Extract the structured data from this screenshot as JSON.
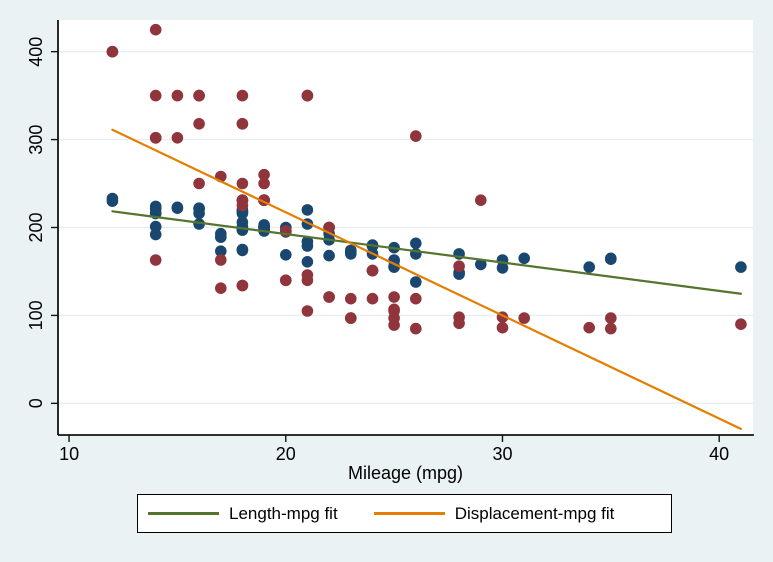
{
  "figure": {
    "background_color": "#EAF2F3",
    "plot_background_color": "#FFFFFF",
    "grid_color": "#E7EFF2",
    "axis_color": "#121212",
    "text_color": "#000000"
  },
  "x_axis": {
    "title": "Mileage (mpg)"
  },
  "legend": {
    "items": [
      {
        "label": "Length-mpg fit",
        "color": "#55752F"
      },
      {
        "label": "Displacement-mpg fit",
        "color": "#E37E00"
      }
    ]
  },
  "chart_data": {
    "type": "scatter",
    "title": "",
    "xlabel": "Mileage (mpg)",
    "ylabel": "",
    "x_ticks": [
      10,
      20,
      30,
      40
    ],
    "y_ticks": [
      0,
      100,
      200,
      300,
      400
    ],
    "xlim": [
      9.49,
      41.56
    ],
    "ylim": [
      -36,
      436
    ],
    "grid": "horizontal-only",
    "legend_position": "bottom",
    "marker_radius": 5.8,
    "series": [
      {
        "name": "Length",
        "color": "#1A476F",
        "marker": "circle",
        "x": [
          22,
          17,
          22,
          20,
          15,
          18,
          26,
          20,
          16,
          19,
          14,
          14,
          21,
          29,
          16,
          22,
          22,
          24,
          19,
          30,
          18,
          16,
          18,
          28,
          21,
          12,
          12,
          14,
          20,
          14,
          15,
          18,
          14,
          20,
          21,
          19,
          19,
          18,
          19,
          24,
          16,
          28,
          34,
          25,
          26,
          18,
          18,
          18,
          19,
          19,
          19,
          24,
          17,
          23,
          25,
          23,
          35,
          24,
          21,
          21,
          25,
          28,
          30,
          14,
          26,
          35,
          18,
          31,
          18,
          23,
          41,
          25,
          25,
          17
        ],
        "y": [
          186,
          173,
          168,
          196,
          222,
          218,
          170,
          200,
          204,
          200,
          221,
          224,
          204,
          158,
          222,
          193,
          200,
          179,
          197,
          163,
          206,
          216,
          220,
          147,
          179,
          233,
          230,
          201,
          169,
          216,
          223,
          197,
          216,
          195,
          220,
          200,
          196,
          218,
          200,
          180,
          221,
          170,
          155,
          162,
          182,
          201,
          216,
          198,
          201,
          198,
          203,
          179,
          189,
          174,
          177,
          170,
          165,
          170,
          184,
          161,
          163,
          149,
          154,
          192,
          138,
          164,
          174,
          165,
          175,
          172,
          155,
          155,
          156,
          193
        ]
      },
      {
        "name": "Displacement",
        "color": "#90353B",
        "marker": "circle",
        "x": [
          22,
          17,
          22,
          20,
          15,
          18,
          26,
          20,
          16,
          19,
          14,
          14,
          21,
          29,
          16,
          22,
          22,
          24,
          19,
          30,
          18,
          16,
          18,
          28,
          21,
          12,
          12,
          14,
          20,
          14,
          15,
          18,
          14,
          20,
          21,
          19,
          19,
          18,
          19,
          24,
          16,
          28,
          34,
          25,
          26,
          18,
          18,
          18,
          19,
          19,
          19,
          24,
          17,
          23,
          25,
          23,
          35,
          24,
          21,
          21,
          25,
          28,
          30,
          14,
          26,
          35,
          18,
          31,
          18,
          23,
          41,
          25,
          25,
          17
        ],
        "y": [
          121,
          258,
          121,
          196,
          350,
          231,
          304,
          196,
          350,
          231,
          425,
          350,
          350,
          231,
          250,
          200,
          200,
          151,
          250,
          98,
          318,
          318,
          318,
          98,
          140,
          400,
          400,
          302,
          140,
          302,
          302,
          250,
          302,
          140,
          350,
          260,
          231,
          350,
          231,
          151,
          350,
          156,
          86,
          105,
          119,
          225,
          231,
          231,
          231,
          231,
          231,
          151,
          131,
          97,
          121,
          119,
          85,
          119,
          146,
          105,
          107,
          91,
          86,
          163,
          85,
          97,
          134,
          97,
          134,
          97,
          90,
          89,
          97,
          163
        ]
      }
    ],
    "fit_lines": [
      {
        "name": "Length-mpg fit",
        "color": "#55752F",
        "source_series": 0,
        "type": "ols"
      },
      {
        "name": "Displacement-mpg fit",
        "color": "#E37E00",
        "source_series": 1,
        "type": "ols"
      }
    ]
  }
}
